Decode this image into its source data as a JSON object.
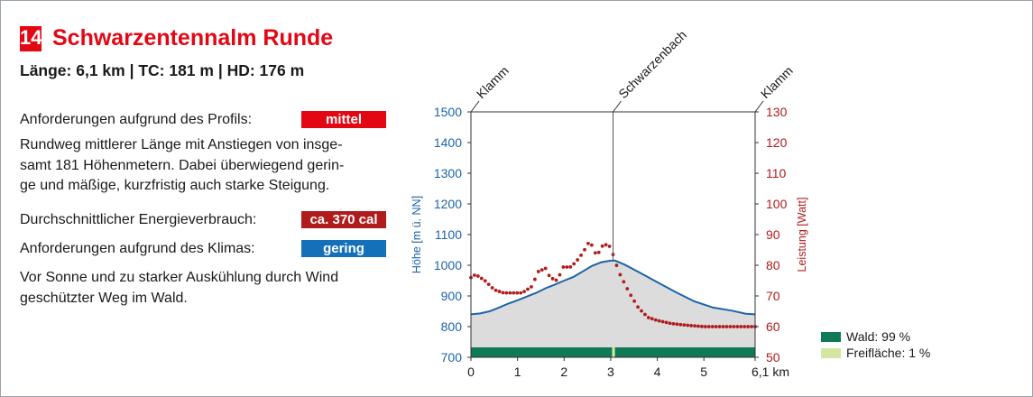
{
  "header": {
    "number": "14",
    "title": "Schwarzentennalm Runde"
  },
  "stats": "Länge: 6,1 km | TC: 181 m | HD: 176 m",
  "profile": {
    "label": "Anforderungen aufgrund des Profils:",
    "value": "mittel"
  },
  "description": [
    "Rundweg mittlerer Länge mit Anstiegen von insge-",
    "samt 181 Höhenmetern. Dabei überwiegend gerin-",
    "ge und mäßige, kurzfristig auch starke Steigung."
  ],
  "energy": {
    "label": "Durchschnittlicher Energieverbrauch:",
    "value": "ca. 370 cal"
  },
  "climate": {
    "label": "Anforderungen aufgrund des Klimas:",
    "value": "gering"
  },
  "climate_note": [
    "Vor Sonne und zu starker Auskühlung durch Wind",
    "geschützter Weg im Wald."
  ],
  "legend": [
    {
      "label": "Wald: 99 %",
      "color": "#0f7a55"
    },
    {
      "label": "Freifläche: 1 %",
      "color": "#d4e6a2"
    }
  ],
  "chart_data": {
    "type": "area",
    "xlabel": "",
    "x_ticks": [
      "0",
      "1",
      "2",
      "3",
      "4",
      "5",
      "6,1 km"
    ],
    "xlim": [
      0,
      6.1
    ],
    "ylabel": "Höhe [m ü. NN]",
    "ylim": [
      700,
      1500
    ],
    "y_ticks": [
      "700",
      "800",
      "900",
      "1000",
      "1100",
      "1200",
      "1300",
      "1400",
      "1500"
    ],
    "y2label": "Leistung [Watt]",
    "y2lim": [
      50,
      130
    ],
    "y2_ticks": [
      "50",
      "60",
      "70",
      "80",
      "90",
      "100",
      "110",
      "120",
      "130"
    ],
    "waypoints": [
      {
        "label": "Klamm",
        "x": 0
      },
      {
        "label": "Schwarzenbach",
        "x": 3.05
      },
      {
        "label": "Klamm",
        "x": 6.1
      }
    ],
    "series": [
      {
        "name": "Höhe",
        "color": "#1b64a8",
        "x": [
          0,
          0.2,
          0.4,
          0.6,
          0.8,
          1.0,
          1.2,
          1.4,
          1.6,
          1.8,
          2.0,
          2.2,
          2.4,
          2.6,
          2.8,
          3.0,
          3.1,
          3.3,
          3.6,
          4.0,
          4.4,
          4.8,
          5.2,
          5.6,
          5.9,
          6.1
        ],
        "values": [
          840,
          843,
          850,
          862,
          875,
          886,
          898,
          910,
          925,
          937,
          950,
          962,
          980,
          998,
          1010,
          1015,
          1015,
          1002,
          978,
          945,
          912,
          882,
          862,
          852,
          842,
          840
        ]
      },
      {
        "name": "Leistung",
        "color": "#b01b1b",
        "x": [
          0,
          0.1,
          0.3,
          0.5,
          0.7,
          0.9,
          1.1,
          1.3,
          1.45,
          1.6,
          1.7,
          1.85,
          2.0,
          2.1,
          2.25,
          2.4,
          2.55,
          2.7,
          2.85,
          3.0,
          3.1,
          3.2,
          3.4,
          3.6,
          3.8,
          4.0,
          4.3,
          4.6,
          5.0,
          5.4,
          5.8,
          6.1
        ],
        "values": [
          76,
          77,
          75,
          72,
          71,
          71,
          71,
          73,
          78,
          79,
          76,
          75,
          80,
          79,
          81,
          84,
          88,
          83,
          87,
          86,
          81,
          77,
          71,
          66,
          63,
          62,
          61,
          60.5,
          60,
          60,
          60,
          60
        ]
      }
    ],
    "landcover_bar": [
      {
        "type": "Wald",
        "from": 0,
        "to": 3.03
      },
      {
        "type": "Freifläche",
        "from": 3.03,
        "to": 3.09
      },
      {
        "type": "Wald",
        "from": 3.09,
        "to": 6.1
      }
    ]
  }
}
